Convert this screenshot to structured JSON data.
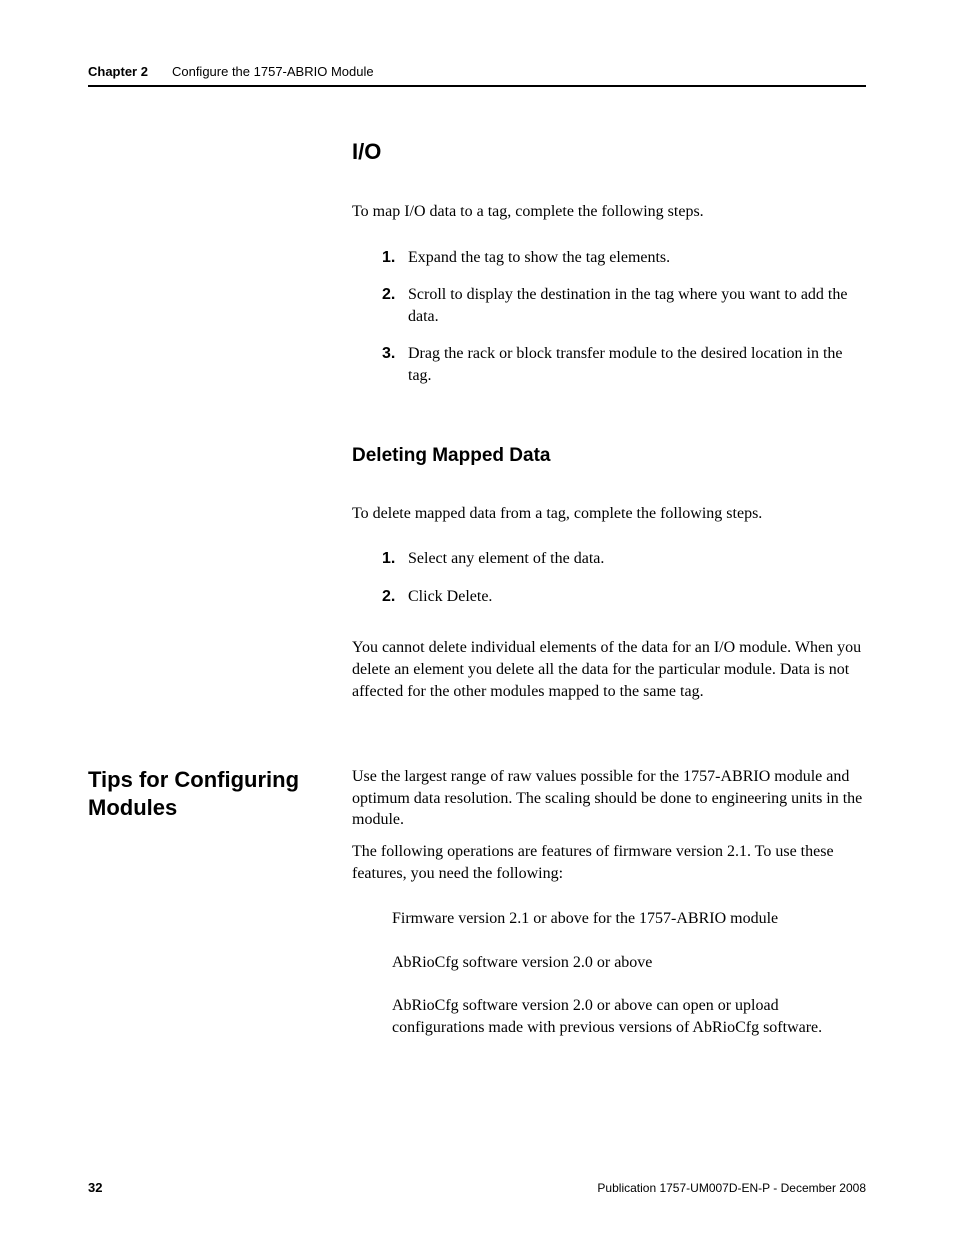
{
  "header": {
    "chapter_label": "Chapter 2",
    "chapter_title": "Configure the 1757-ABRIO Module"
  },
  "section_io": {
    "heading": "I/O",
    "intro": "To map I/O data to a tag, complete the following steps.",
    "steps": [
      {
        "num": "1.",
        "text": "Expand the tag to show the tag elements."
      },
      {
        "num": "2.",
        "text": "Scroll to display the destination in the tag where you want to add the data."
      },
      {
        "num": "3.",
        "text": "Drag the rack or block transfer module to the desired location in the tag."
      }
    ]
  },
  "section_delete": {
    "heading": "Deleting Mapped Data",
    "intro": "To delete mapped data from a tag, complete the following steps.",
    "steps": [
      {
        "num": "1.",
        "text": "Select any element of the data."
      },
      {
        "num": "2.",
        "text": "Click Delete."
      }
    ],
    "note": "You cannot delete individual elements of the data for an I/O module. When you delete an element you delete all the data for the particular module. Data is not affected for the other modules mapped to the same tag."
  },
  "section_tips": {
    "side_heading": "Tips for Configuring Modules",
    "para1": "Use the largest range of raw values possible for the 1757-ABRIO module and optimum data resolution. The scaling should be done to engineering units in the module.",
    "para2": "The following operations are features of firmware version 2.1. To use these features, you need the following:",
    "bullets": [
      "Firmware version 2.1 or above for the 1757-ABRIO module",
      "AbRioCfg software version 2.0 or above",
      "AbRioCfg software version 2.0 or above can open or upload configurations made with previous versions of AbRioCfg software."
    ]
  },
  "footer": {
    "page_number": "32",
    "publication": "Publication 1757-UM007D-EN-P - December 2008"
  }
}
